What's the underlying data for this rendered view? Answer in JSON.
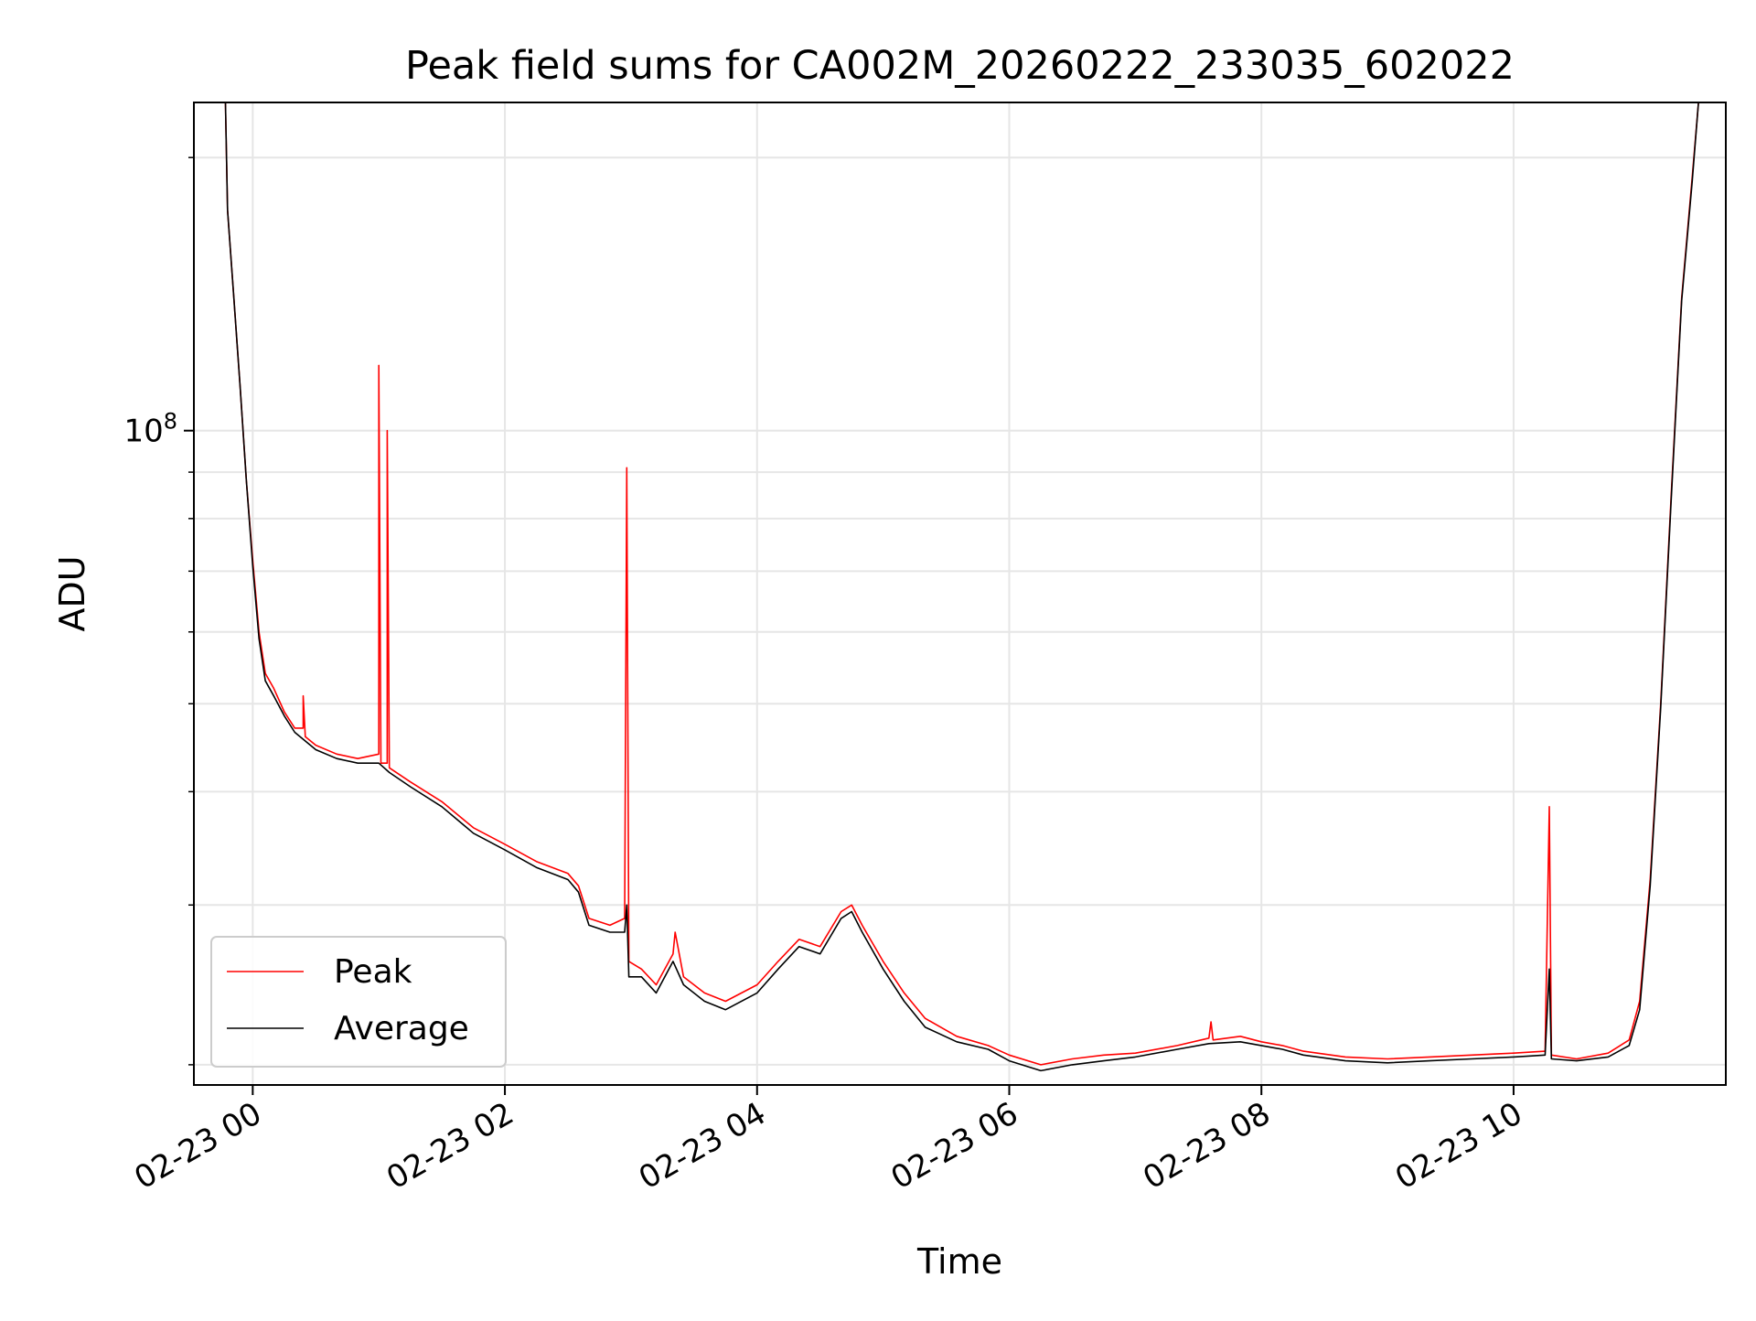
{
  "chart_data": {
    "type": "line",
    "title": "Peak field sums for CA002M_20260222_233035_602022",
    "xlabel": "Time",
    "ylabel": "ADU",
    "yscale": "log",
    "ylim": [
      19000000,
      230000000
    ],
    "xlim": [
      "2026-02-22 23:32",
      "2026-02-23 11:41"
    ],
    "x_ticks": [
      "02-23 00",
      "02-23 02",
      "02-23 04",
      "02-23 06",
      "02-23 08",
      "02-23 10"
    ],
    "x_tick_times": [
      "2026-02-23 00:00",
      "2026-02-23 02:00",
      "2026-02-23 04:00",
      "2026-02-23 06:00",
      "2026-02-23 08:00",
      "2026-02-23 10:00"
    ],
    "y_major_ticks": [
      {
        "value": 100000000,
        "base": "10",
        "exponent": "8"
      }
    ],
    "y_minor_ticks": [
      20000000,
      30000000,
      40000000,
      50000000,
      60000000,
      70000000,
      80000000,
      90000000,
      200000000
    ],
    "grid": true,
    "legend_position": "lower-left",
    "series": [
      {
        "name": "Peak",
        "color": "#ff0000",
        "points": [
          [
            "2026-02-22 23:47",
            230000000
          ],
          [
            "2026-02-22 23:48",
            175000000
          ],
          [
            "2026-02-22 23:51",
            140000000
          ],
          [
            "2026-02-22 23:54",
            112000000
          ],
          [
            "2026-02-22 23:57",
            88000000
          ],
          [
            "2026-02-23 00:00",
            72000000
          ],
          [
            "2026-02-23 00:03",
            60000000
          ],
          [
            "2026-02-23 00:06",
            54000000
          ],
          [
            "2026-02-23 00:10",
            52000000
          ],
          [
            "2026-02-23 00:15",
            49000000
          ],
          [
            "2026-02-23 00:20",
            47000000
          ],
          [
            "2026-02-23 00:24",
            47000000
          ],
          [
            "2026-02-23 00:24",
            51000000
          ],
          [
            "2026-02-23 00:25",
            46000000
          ],
          [
            "2026-02-23 00:30",
            45000000
          ],
          [
            "2026-02-23 00:40",
            44000000
          ],
          [
            "2026-02-23 00:50",
            43500000
          ],
          [
            "2026-02-23 01:00",
            44000000
          ],
          [
            "2026-02-23 01:00",
            118000000
          ],
          [
            "2026-02-23 01:01",
            43000000
          ],
          [
            "2026-02-23 01:04",
            43000000
          ],
          [
            "2026-02-23 01:04",
            100000000
          ],
          [
            "2026-02-23 01:05",
            42500000
          ],
          [
            "2026-02-23 01:15",
            41000000
          ],
          [
            "2026-02-23 01:30",
            39000000
          ],
          [
            "2026-02-23 01:45",
            36500000
          ],
          [
            "2026-02-23 02:00",
            35000000
          ],
          [
            "2026-02-23 02:15",
            33500000
          ],
          [
            "2026-02-23 02:30",
            32500000
          ],
          [
            "2026-02-23 02:35",
            31500000
          ],
          [
            "2026-02-23 02:40",
            29000000
          ],
          [
            "2026-02-23 02:50",
            28500000
          ],
          [
            "2026-02-23 02:57",
            29000000
          ],
          [
            "2026-02-23 02:58",
            91000000
          ],
          [
            "2026-02-23 02:59",
            26000000
          ],
          [
            "2026-02-23 03:05",
            25500000
          ],
          [
            "2026-02-23 03:12",
            24500000
          ],
          [
            "2026-02-23 03:20",
            26500000
          ],
          [
            "2026-02-23 03:21",
            28000000
          ],
          [
            "2026-02-23 03:25",
            25000000
          ],
          [
            "2026-02-23 03:35",
            24000000
          ],
          [
            "2026-02-23 03:45",
            23500000
          ],
          [
            "2026-02-23 04:00",
            24500000
          ],
          [
            "2026-02-23 04:10",
            26000000
          ],
          [
            "2026-02-23 04:20",
            27500000
          ],
          [
            "2026-02-23 04:30",
            27000000
          ],
          [
            "2026-02-23 04:40",
            29500000
          ],
          [
            "2026-02-23 04:45",
            30000000
          ],
          [
            "2026-02-23 04:50",
            28500000
          ],
          [
            "2026-02-23 05:00",
            26000000
          ],
          [
            "2026-02-23 05:10",
            24000000
          ],
          [
            "2026-02-23 05:20",
            22500000
          ],
          [
            "2026-02-23 05:35",
            21500000
          ],
          [
            "2026-02-23 05:50",
            21000000
          ],
          [
            "2026-02-23 06:00",
            20500000
          ],
          [
            "2026-02-23 06:15",
            20000000
          ],
          [
            "2026-02-23 06:30",
            20300000
          ],
          [
            "2026-02-23 06:45",
            20500000
          ],
          [
            "2026-02-23 07:00",
            20600000
          ],
          [
            "2026-02-23 07:20",
            21000000
          ],
          [
            "2026-02-23 07:35",
            21400000
          ],
          [
            "2026-02-23 07:36",
            22300000
          ],
          [
            "2026-02-23 07:37",
            21300000
          ],
          [
            "2026-02-23 07:50",
            21500000
          ],
          [
            "2026-02-23 08:00",
            21200000
          ],
          [
            "2026-02-23 08:10",
            21000000
          ],
          [
            "2026-02-23 08:20",
            20700000
          ],
          [
            "2026-02-23 08:40",
            20400000
          ],
          [
            "2026-02-23 09:00",
            20300000
          ],
          [
            "2026-02-23 09:20",
            20400000
          ],
          [
            "2026-02-23 09:40",
            20500000
          ],
          [
            "2026-02-23 10:00",
            20600000
          ],
          [
            "2026-02-23 10:15",
            20700000
          ],
          [
            "2026-02-23 10:17",
            38500000
          ],
          [
            "2026-02-23 10:18",
            20500000
          ],
          [
            "2026-02-23 10:30",
            20300000
          ],
          [
            "2026-02-23 10:45",
            20600000
          ],
          [
            "2026-02-23 10:55",
            21300000
          ],
          [
            "2026-02-23 11:00",
            23500000
          ],
          [
            "2026-02-23 11:05",
            32000000
          ],
          [
            "2026-02-23 11:10",
            50000000
          ],
          [
            "2026-02-23 11:15",
            85000000
          ],
          [
            "2026-02-23 11:20",
            140000000
          ],
          [
            "2026-02-23 11:25",
            190000000
          ],
          [
            "2026-02-23 11:28",
            230000000
          ]
        ]
      },
      {
        "name": "Average",
        "color": "#000000",
        "points": [
          [
            "2026-02-22 23:47",
            230000000
          ],
          [
            "2026-02-22 23:48",
            175000000
          ],
          [
            "2026-02-22 23:51",
            140000000
          ],
          [
            "2026-02-22 23:54",
            112000000
          ],
          [
            "2026-02-22 23:57",
            88000000
          ],
          [
            "2026-02-23 00:00",
            71000000
          ],
          [
            "2026-02-23 00:03",
            59000000
          ],
          [
            "2026-02-23 00:06",
            53000000
          ],
          [
            "2026-02-23 00:10",
            51000000
          ],
          [
            "2026-02-23 00:15",
            48500000
          ],
          [
            "2026-02-23 00:20",
            46500000
          ],
          [
            "2026-02-23 00:30",
            44500000
          ],
          [
            "2026-02-23 00:40",
            43500000
          ],
          [
            "2026-02-23 00:50",
            43000000
          ],
          [
            "2026-02-23 01:00",
            43000000
          ],
          [
            "2026-02-23 01:05",
            42000000
          ],
          [
            "2026-02-23 01:15",
            40500000
          ],
          [
            "2026-02-23 01:30",
            38500000
          ],
          [
            "2026-02-23 01:45",
            36000000
          ],
          [
            "2026-02-23 02:00",
            34500000
          ],
          [
            "2026-02-23 02:15",
            33000000
          ],
          [
            "2026-02-23 02:30",
            32000000
          ],
          [
            "2026-02-23 02:35",
            31000000
          ],
          [
            "2026-02-23 02:40",
            28500000
          ],
          [
            "2026-02-23 02:50",
            28000000
          ],
          [
            "2026-02-23 02:57",
            28000000
          ],
          [
            "2026-02-23 02:58",
            30000000
          ],
          [
            "2026-02-23 02:59",
            25000000
          ],
          [
            "2026-02-23 03:05",
            25000000
          ],
          [
            "2026-02-23 03:12",
            24000000
          ],
          [
            "2026-02-23 03:20",
            26000000
          ],
          [
            "2026-02-23 03:25",
            24500000
          ],
          [
            "2026-02-23 03:35",
            23500000
          ],
          [
            "2026-02-23 03:45",
            23000000
          ],
          [
            "2026-02-23 04:00",
            24000000
          ],
          [
            "2026-02-23 04:10",
            25500000
          ],
          [
            "2026-02-23 04:20",
            27000000
          ],
          [
            "2026-02-23 04:30",
            26500000
          ],
          [
            "2026-02-23 04:40",
            29000000
          ],
          [
            "2026-02-23 04:45",
            29500000
          ],
          [
            "2026-02-23 04:50",
            28000000
          ],
          [
            "2026-02-23 05:00",
            25500000
          ],
          [
            "2026-02-23 05:10",
            23500000
          ],
          [
            "2026-02-23 05:20",
            22000000
          ],
          [
            "2026-02-23 05:35",
            21200000
          ],
          [
            "2026-02-23 05:50",
            20800000
          ],
          [
            "2026-02-23 06:00",
            20200000
          ],
          [
            "2026-02-23 06:15",
            19700000
          ],
          [
            "2026-02-23 06:30",
            20000000
          ],
          [
            "2026-02-23 06:45",
            20200000
          ],
          [
            "2026-02-23 07:00",
            20400000
          ],
          [
            "2026-02-23 07:20",
            20800000
          ],
          [
            "2026-02-23 07:35",
            21100000
          ],
          [
            "2026-02-23 07:50",
            21200000
          ],
          [
            "2026-02-23 08:00",
            21000000
          ],
          [
            "2026-02-23 08:10",
            20800000
          ],
          [
            "2026-02-23 08:20",
            20500000
          ],
          [
            "2026-02-23 08:40",
            20200000
          ],
          [
            "2026-02-23 09:00",
            20100000
          ],
          [
            "2026-02-23 09:20",
            20200000
          ],
          [
            "2026-02-23 09:40",
            20300000
          ],
          [
            "2026-02-23 10:00",
            20400000
          ],
          [
            "2026-02-23 10:15",
            20500000
          ],
          [
            "2026-02-23 10:17",
            25500000
          ],
          [
            "2026-02-23 10:18",
            20300000
          ],
          [
            "2026-02-23 10:30",
            20200000
          ],
          [
            "2026-02-23 10:45",
            20400000
          ],
          [
            "2026-02-23 10:55",
            21000000
          ],
          [
            "2026-02-23 11:00",
            23000000
          ],
          [
            "2026-02-23 11:05",
            31500000
          ],
          [
            "2026-02-23 11:10",
            49500000
          ],
          [
            "2026-02-23 11:15",
            84000000
          ],
          [
            "2026-02-23 11:20",
            139000000
          ],
          [
            "2026-02-23 11:25",
            188000000
          ],
          [
            "2026-02-23 11:28",
            230000000
          ]
        ]
      }
    ]
  }
}
